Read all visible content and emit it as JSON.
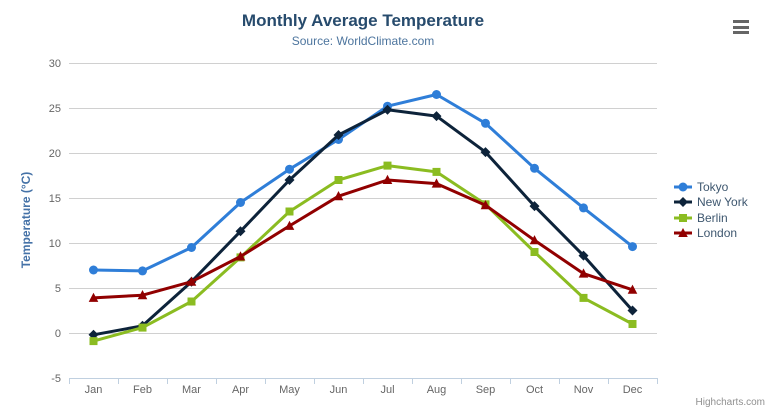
{
  "chart_data": {
    "type": "line",
    "title": "Monthly Average Temperature",
    "subtitle": "Source: WorldClimate.com",
    "xlabel": "",
    "ylabel": "Temperature (°C)",
    "ylim": [
      -5,
      30
    ],
    "yticks": [
      -5,
      0,
      5,
      10,
      15,
      20,
      25,
      30
    ],
    "grid": "horizontal-only",
    "legend_position": "right-middle",
    "categories": [
      "Jan",
      "Feb",
      "Mar",
      "Apr",
      "May",
      "Jun",
      "Jul",
      "Aug",
      "Sep",
      "Oct",
      "Nov",
      "Dec"
    ],
    "series": [
      {
        "name": "Tokyo",
        "color": "#2f7ed8",
        "marker": "circle",
        "values": [
          7.0,
          6.9,
          9.5,
          14.5,
          18.2,
          21.5,
          25.2,
          26.5,
          23.3,
          18.3,
          13.9,
          9.6
        ]
      },
      {
        "name": "New York",
        "color": "#0d233a",
        "marker": "diamond",
        "values": [
          -0.2,
          0.8,
          5.7,
          11.3,
          17.0,
          22.0,
          24.8,
          24.1,
          20.1,
          14.1,
          8.6,
          2.5
        ]
      },
      {
        "name": "Berlin",
        "color": "#8bbc21",
        "marker": "square",
        "values": [
          -0.9,
          0.6,
          3.5,
          8.4,
          13.5,
          17.0,
          18.6,
          17.9,
          14.3,
          9.0,
          3.9,
          1.0
        ]
      },
      {
        "name": "London",
        "color": "#910000",
        "marker": "triangle",
        "values": [
          3.9,
          4.2,
          5.7,
          8.5,
          11.9,
          15.2,
          17.0,
          16.6,
          14.2,
          10.3,
          6.6,
          4.8
        ]
      }
    ]
  },
  "credits": {
    "label": "Highcharts.com"
  },
  "icons": {
    "menu": "hamburger-menu-icon"
  },
  "colors": {
    "title": "#274b6d",
    "subtitle": "#4d759e",
    "axis_title": "#4572a7",
    "axis_labels": "#666666",
    "gridline": "#d0d0d0",
    "axis_line": "#c0d0e0",
    "legend_text": "#3e576f",
    "credits": "#909090",
    "menu_icon": "#666666"
  }
}
